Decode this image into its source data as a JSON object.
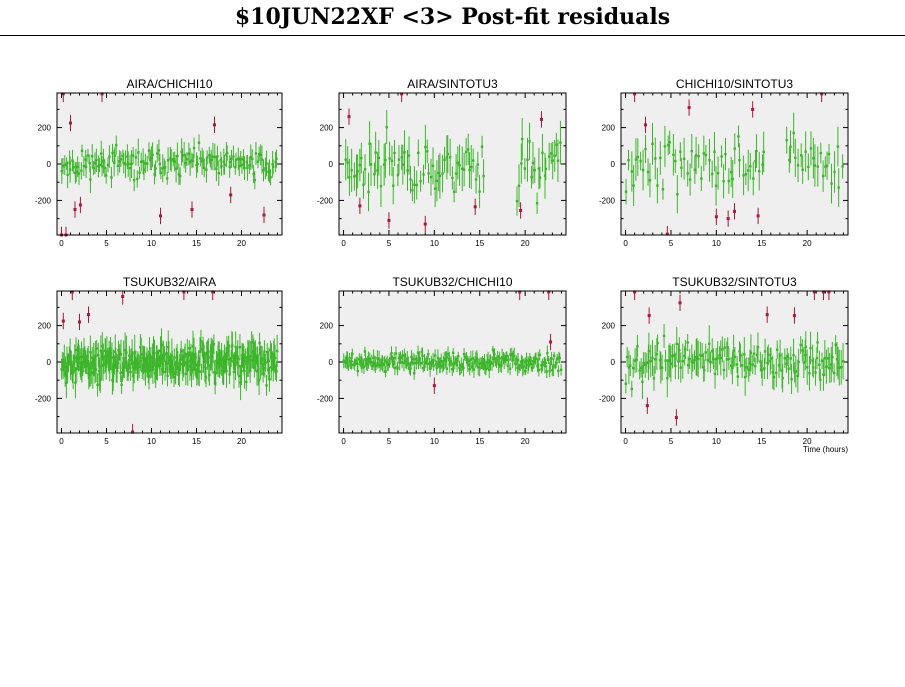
{
  "title": "$10JUN22XF <3> Post-fit residuals",
  "colors": {
    "good": "#3cb52a",
    "flagged": "#a8193c",
    "panel_bg": "#efefef"
  },
  "chart_data": [
    {
      "type": "scatter",
      "title": "AIRA/CHICHI10",
      "xlim": [
        -0.5,
        24.5
      ],
      "ylim": [
        -390,
        390
      ],
      "xticks": [
        0,
        5,
        10,
        15,
        20
      ],
      "yticks": [
        -200,
        0,
        200
      ],
      "xlabel": "",
      "grid": false,
      "series": [
        {
          "flagged": false,
          "n": 150,
          "x0": 0.0,
          "x1": 24,
          "amp": 55,
          "err": 55,
          "seed": 11
        },
        {
          "flagged": true,
          "points": [
            [
              0,
              -390
            ],
            [
              0.5,
              -390
            ],
            [
              0.2,
              385
            ],
            [
              1.0,
              225
            ],
            [
              1.5,
              -250
            ],
            [
              2.1,
              -225
            ],
            [
              4.5,
              385
            ],
            [
              11.0,
              -285
            ],
            [
              14.5,
              -250
            ],
            [
              17.0,
              215
            ],
            [
              18.8,
              -170
            ],
            [
              22.5,
              -280
            ]
          ]
        }
      ]
    },
    {
      "type": "scatter",
      "title": "AIRA/SINTOTU3",
      "xlim": [
        -0.5,
        24.5
      ],
      "ylim": [
        -390,
        390
      ],
      "xticks": [
        0,
        5,
        10,
        15,
        20
      ],
      "yticks": [
        -200,
        0,
        200
      ],
      "xlabel": "",
      "grid": false,
      "series": [
        {
          "flagged": false,
          "n": 110,
          "x0": 0.2,
          "x1": 24,
          "amp": 120,
          "err": 90,
          "seed": 23,
          "gaps": [
            [
              15.5,
              19
            ]
          ]
        },
        {
          "flagged": true,
          "points": [
            [
              0.6,
              260
            ],
            [
              1.8,
              -230
            ],
            [
              5.0,
              -310
            ],
            [
              6.4,
              385
            ],
            [
              9.0,
              -330
            ],
            [
              14.5,
              -235
            ],
            [
              19.5,
              -255
            ],
            [
              21.8,
              245
            ]
          ]
        }
      ]
    },
    {
      "type": "scatter",
      "title": "CHICHI10/SINTOTU3",
      "xlim": [
        -0.5,
        24.5
      ],
      "ylim": [
        -390,
        390
      ],
      "xticks": [
        0,
        5,
        10,
        15,
        20
      ],
      "yticks": [
        -200,
        0,
        200
      ],
      "xlabel": "",
      "grid": false,
      "series": [
        {
          "flagged": false,
          "n": 90,
          "x0": 0.0,
          "x1": 24,
          "amp": 110,
          "err": 85,
          "seed": 37,
          "gaps": [
            [
              15.5,
              17.5
            ]
          ]
        },
        {
          "flagged": true,
          "points": [
            [
              1.0,
              385
            ],
            [
              2.2,
              215
            ],
            [
              4.6,
              -385
            ],
            [
              7.0,
              310
            ],
            [
              10.0,
              -290
            ],
            [
              11.3,
              -300
            ],
            [
              12.0,
              -260
            ],
            [
              14.6,
              -285
            ],
            [
              14.0,
              300
            ],
            [
              21.6,
              385
            ]
          ]
        }
      ]
    },
    {
      "type": "scatter",
      "title": "TSUKUB32/AIRA",
      "xlim": [
        -0.5,
        24.5
      ],
      "ylim": [
        -390,
        390
      ],
      "xticks": [
        0,
        5,
        10,
        15,
        20
      ],
      "yticks": [
        -200,
        0,
        200
      ],
      "xlabel": "",
      "grid": false,
      "series": [
        {
          "flagged": false,
          "n": 320,
          "x0": 0.0,
          "x1": 24,
          "amp": 70,
          "err": 70,
          "seed": 53
        },
        {
          "flagged": true,
          "points": [
            [
              0.2,
              225
            ],
            [
              1.2,
              385
            ],
            [
              2.0,
              220
            ],
            [
              3.0,
              260
            ],
            [
              6.8,
              360
            ],
            [
              7.9,
              -385
            ],
            [
              13.6,
              385
            ],
            [
              16.8,
              385
            ]
          ]
        }
      ]
    },
    {
      "type": "scatter",
      "title": "TSUKUB32/CHICHI10",
      "xlim": [
        -0.5,
        24.5
      ],
      "ylim": [
        -390,
        390
      ],
      "xticks": [
        0,
        5,
        10,
        15,
        20
      ],
      "yticks": [
        -200,
        0,
        200
      ],
      "xlabel": "",
      "grid": false,
      "series": [
        {
          "flagged": false,
          "n": 230,
          "x0": 0.0,
          "x1": 24,
          "amp": 35,
          "err": 35,
          "seed": 71
        },
        {
          "flagged": true,
          "points": [
            [
              10.0,
              -130
            ],
            [
              19.4,
              385
            ],
            [
              22.8,
              110
            ],
            [
              22.6,
              385
            ]
          ]
        }
      ]
    },
    {
      "type": "scatter",
      "title": "TSUKUB32/SINTOTU3",
      "xlim": [
        -0.5,
        24.5
      ],
      "ylim": [
        -390,
        390
      ],
      "xticks": [
        0,
        5,
        10,
        15,
        20
      ],
      "yticks": [
        -200,
        0,
        200
      ],
      "xlabel": "Time (hours)",
      "grid": false,
      "series": [
        {
          "flagged": false,
          "n": 150,
          "x0": 0.0,
          "x1": 24,
          "amp": 70,
          "err": 75,
          "seed": 97
        },
        {
          "flagged": true,
          "points": [
            [
              1.0,
              385
            ],
            [
              2.4,
              -240
            ],
            [
              2.6,
              255
            ],
            [
              5.6,
              -305
            ],
            [
              6.0,
              325
            ],
            [
              15.6,
              260
            ],
            [
              18.6,
              255
            ],
            [
              20.8,
              385
            ],
            [
              21.8,
              385
            ],
            [
              22.4,
              385
            ]
          ]
        }
      ]
    }
  ]
}
